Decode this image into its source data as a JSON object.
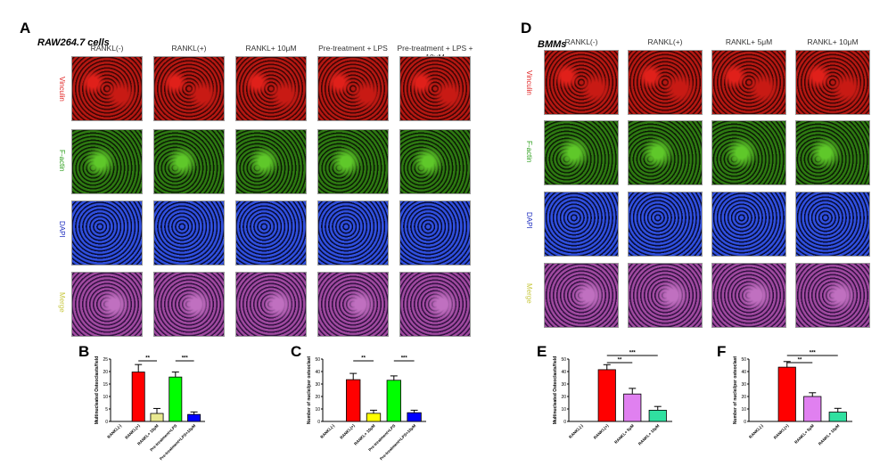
{
  "panelA": {
    "letter": "A",
    "subtitle": "RAW264.7 cells",
    "columns": [
      "RANKL(-)",
      "RANKL(+)",
      "RANKL+ 10μM",
      "Pre-treatment + LPS",
      "Pre-treatment + LPS + 10μM"
    ],
    "rows": [
      "Vinculin",
      "F-actin",
      "DAPI",
      "Merge"
    ]
  },
  "panelD": {
    "letter": "D",
    "subtitle": "BMMs",
    "columns": [
      "RANKL(-)",
      "RANKL(+)",
      "RANKL+ 5μM",
      "RANKL+ 10μM"
    ],
    "rows": [
      "Vinculin",
      "F-actin",
      "DAPI",
      "Merge"
    ]
  },
  "row_colors": {
    "Vinculin": "#e02020",
    "F-actin": "#30a020",
    "DAPI": "#2030c0",
    "Merge": "#c8c840"
  },
  "chart_data": [
    {
      "letter": "B",
      "type": "bar",
      "ylabel": "Multinucleated Osteoclasts/field",
      "ylim": [
        0,
        25
      ],
      "yticks": [
        0,
        5,
        10,
        15,
        20,
        25
      ],
      "categories": [
        "RANKL(-)",
        "RANKL(+)",
        "RANKL+ 10μM",
        "Pre-treatment+LPS",
        "Pre-treatment+LPS+10μM"
      ],
      "values": [
        0,
        19.8,
        3.2,
        17.8,
        2.8
      ],
      "errors": [
        0,
        3,
        2,
        2,
        1
      ],
      "colors": [
        "#ffffff",
        "#ff0000",
        "#e8e890",
        "#00ff00",
        "#0000ff"
      ],
      "significance": [
        {
          "from": 1,
          "to": 2,
          "label": "**"
        },
        {
          "from": 3,
          "to": 4,
          "label": "***"
        }
      ]
    },
    {
      "letter": "C",
      "type": "bar",
      "ylabel": "Number of nuclei/per osteoclast",
      "ylim": [
        0,
        50
      ],
      "yticks": [
        0,
        10,
        20,
        30,
        40,
        50
      ],
      "categories": [
        "RANKL(-)",
        "RANKL(+)",
        "RANKL+ 10μM",
        "Pre-treatment+LPS",
        "Pre-treatment+LPS+10μM"
      ],
      "values": [
        0,
        33.5,
        6.5,
        33,
        7
      ],
      "errors": [
        0,
        5,
        2.5,
        3.5,
        2
      ],
      "colors": [
        "#ffffff",
        "#ff0000",
        "#ffff00",
        "#00ff00",
        "#0000ff"
      ],
      "significance": [
        {
          "from": 1,
          "to": 2,
          "label": "**"
        },
        {
          "from": 3,
          "to": 4,
          "label": "***"
        }
      ]
    },
    {
      "letter": "E",
      "type": "bar",
      "ylabel": "Multinucleated Osteoclasts/field",
      "ylim": [
        0,
        50
      ],
      "yticks": [
        0,
        10,
        20,
        30,
        40,
        50
      ],
      "categories": [
        "RANKL(-)",
        "RANKL(+)",
        "RANKL+ 5μM",
        "RANKL+ 10μM"
      ],
      "values": [
        0,
        41.5,
        22,
        9
      ],
      "errors": [
        0,
        4,
        4.5,
        3
      ],
      "colors": [
        "#ffffff",
        "#ff0000",
        "#e080f0",
        "#30e0a0"
      ],
      "significance": [
        {
          "from": 1,
          "to": 2,
          "label": "**"
        },
        {
          "from": 1,
          "to": 3,
          "label": "***"
        }
      ]
    },
    {
      "letter": "F",
      "type": "bar",
      "ylabel": "Number of nuclei/per osteoclast",
      "ylim": [
        0,
        50
      ],
      "yticks": [
        0,
        10,
        20,
        30,
        40,
        50
      ],
      "categories": [
        "RANKL(-)",
        "RANKL(+)",
        "RANKL+ 5μM",
        "RANKL+ 10μM"
      ],
      "values": [
        0,
        43.5,
        20,
        7.5
      ],
      "errors": [
        0,
        4.5,
        3,
        3
      ],
      "colors": [
        "#ffffff",
        "#ff0000",
        "#e080f0",
        "#30e0a0"
      ],
      "significance": [
        {
          "from": 1,
          "to": 2,
          "label": "**"
        },
        {
          "from": 1,
          "to": 3,
          "label": "***"
        }
      ]
    }
  ]
}
